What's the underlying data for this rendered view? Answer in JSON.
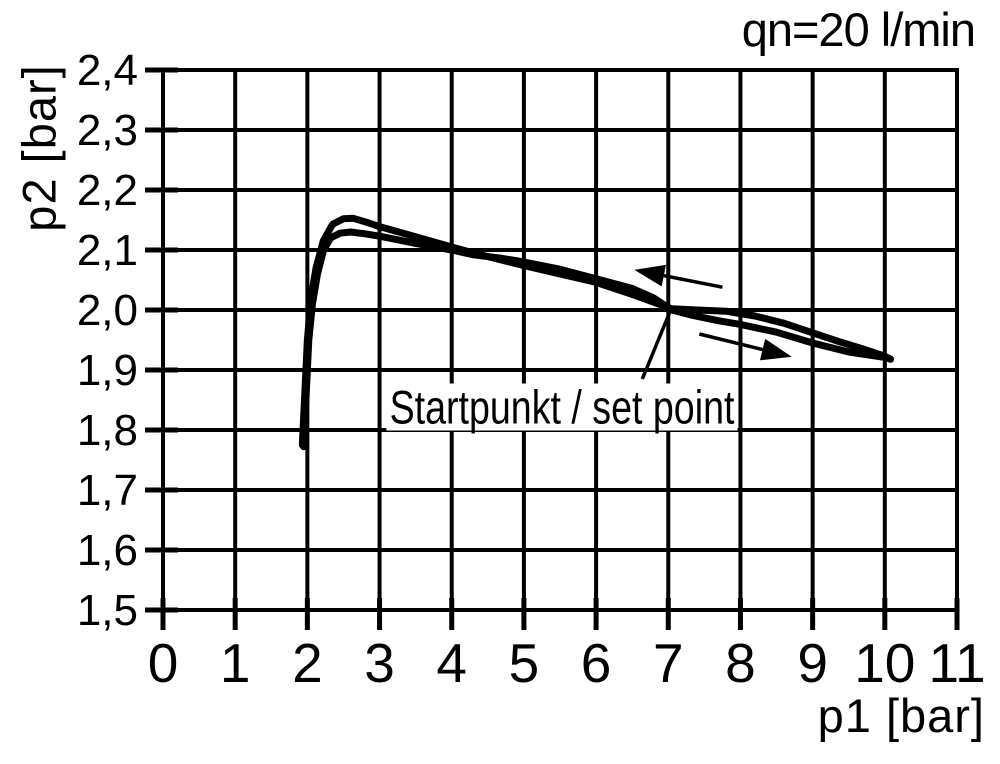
{
  "colors": {
    "ink": "#000000",
    "background": "#ffffff"
  },
  "chart_data": {
    "type": "line",
    "title": "qn=20 l/min",
    "xlabel": "p1 [bar]",
    "ylabel": "p2 [bar]",
    "xlim": [
      0,
      11
    ],
    "ylim": [
      1.5,
      2.4
    ],
    "grid": true,
    "x_ticks": {
      "values": [
        0,
        1,
        2,
        3,
        4,
        5,
        6,
        7,
        8,
        9,
        10,
        11
      ],
      "labels": [
        "0",
        "1",
        "2",
        "3",
        "4",
        "5",
        "6",
        "7",
        "8",
        "9",
        "10",
        "11"
      ]
    },
    "y_ticks": {
      "values": [
        1.5,
        1.6,
        1.7,
        1.8,
        1.9,
        2.0,
        2.1,
        2.2,
        2.3,
        2.4
      ],
      "labels": [
        "1,5",
        "1,6",
        "1,7",
        "1,8",
        "1,9",
        "2,0",
        "2,1",
        "2,2",
        "2,3",
        "2,4"
      ]
    },
    "series": [
      {
        "name": "pressure-characteristic-return",
        "points": [
          [
            1.93,
            1.775
          ],
          [
            1.96,
            1.85
          ],
          [
            2.0,
            1.95
          ],
          [
            2.05,
            2.02
          ],
          [
            2.12,
            2.07
          ],
          [
            2.22,
            2.115
          ],
          [
            2.35,
            2.143
          ],
          [
            2.5,
            2.152
          ],
          [
            2.63,
            2.153
          ],
          [
            2.8,
            2.147
          ],
          [
            3.0,
            2.139
          ],
          [
            3.5,
            2.122
          ],
          [
            4.0,
            2.105
          ],
          [
            4.3,
            2.095
          ],
          [
            4.7,
            2.083
          ],
          [
            5.0,
            2.074
          ],
          [
            5.5,
            2.06
          ],
          [
            6.0,
            2.046
          ],
          [
            6.5,
            2.026
          ],
          [
            7.05,
            2.002
          ],
          [
            7.4,
            2.0
          ],
          [
            7.8,
            1.998
          ],
          [
            8.2,
            1.99
          ],
          [
            8.6,
            1.978
          ],
          [
            9.0,
            1.962
          ],
          [
            9.4,
            1.946
          ],
          [
            9.7,
            1.935
          ],
          [
            10.0,
            1.923
          ],
          [
            10.08,
            1.918
          ]
        ]
      },
      {
        "name": "pressure-characteristic-forward",
        "points": [
          [
            1.95,
            1.772
          ],
          [
            1.98,
            1.85
          ],
          [
            2.02,
            1.95
          ],
          [
            2.07,
            2.01
          ],
          [
            2.14,
            2.06
          ],
          [
            2.22,
            2.098
          ],
          [
            2.32,
            2.12
          ],
          [
            2.45,
            2.128
          ],
          [
            2.6,
            2.13
          ],
          [
            2.8,
            2.127
          ],
          [
            3.0,
            2.123
          ],
          [
            3.5,
            2.111
          ],
          [
            4.0,
            2.1
          ],
          [
            4.3,
            2.092
          ],
          [
            4.7,
            2.086
          ],
          [
            5.0,
            2.08
          ],
          [
            5.5,
            2.068
          ],
          [
            6.0,
            2.052
          ],
          [
            6.5,
            2.036
          ],
          [
            6.8,
            2.02
          ],
          [
            7.05,
            2.0
          ],
          [
            7.3,
            1.992
          ],
          [
            7.7,
            1.982
          ],
          [
            8.0,
            1.976
          ],
          [
            8.5,
            1.963
          ],
          [
            9.0,
            1.945
          ],
          [
            9.5,
            1.93
          ],
          [
            10.0,
            1.921
          ],
          [
            10.08,
            1.918
          ]
        ]
      }
    ],
    "annotations": {
      "set_point": {
        "label": "Startpunkt / set point",
        "label_anchor": [
          5.53,
          1.838
        ],
        "leader_from": [
          6.64,
          1.885
        ],
        "leader_to": [
          7.05,
          2.005
        ]
      },
      "arrows": [
        {
          "name": "return-direction-arrow",
          "from": [
            7.75,
            2.038
          ],
          "to": [
            6.53,
            2.067
          ]
        },
        {
          "name": "forward-direction-arrow",
          "from": [
            7.43,
            1.96
          ],
          "to": [
            8.71,
            1.922
          ]
        }
      ]
    }
  }
}
